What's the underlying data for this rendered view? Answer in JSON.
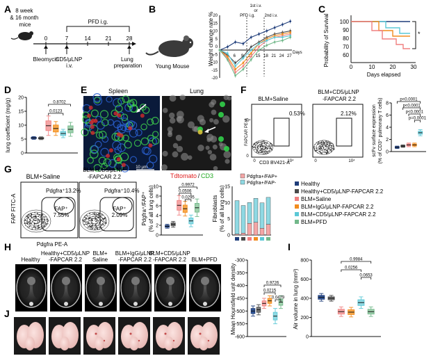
{
  "panels": {
    "a": "A",
    "b": "B",
    "c": "C",
    "d": "D",
    "e": "E",
    "f": "F",
    "g": "G",
    "h": "H",
    "i": "I",
    "j": "J"
  },
  "colors": {
    "healthy": "#1f3d7a",
    "healthy_car": "#4a4a4a",
    "blm_saline": "#f08080",
    "blm_igg": "#f28c1e",
    "blm_car": "#5bc8d6",
    "blm_pfd": "#72b88a"
  },
  "a": {
    "mice": "8 week\n& 16 month\nmice",
    "pfd": "PFD i.g.",
    "ticks": [
      "0",
      "7",
      "14",
      "21",
      "28"
    ],
    "bleomycin": "Bleomycin",
    "lnp": "CD5/μLNP\ni.v.",
    "lung": "Lung\npreparation"
  },
  "b": {
    "mouse": "Young Mouse",
    "ylabel": "Weight change rate %",
    "inj1": "1st i.v.",
    "or": "or",
    "pfd": "PFD i.g.",
    "inj2": "2nd i.v.",
    "xlabel": "Days",
    "yticks": [
      "20",
      "15",
      "10",
      "5",
      "0",
      "-5",
      "-10",
      "-15",
      "-20"
    ],
    "xticks": [
      "3",
      "6",
      "9",
      "12",
      "15",
      "18",
      "21",
      "24",
      "27"
    ]
  },
  "c": {
    "ylabel": "Probability of Survival",
    "xlabel": "Days elapsed",
    "yticks": [
      "100",
      "90",
      "80",
      "70",
      "60"
    ],
    "xticks": [
      "0",
      "10",
      "20",
      "30"
    ],
    "sig": "*"
  },
  "d": {
    "ylabel": "lung coefficient (mg/g)",
    "yticks": [
      "20",
      "15",
      "10",
      "5",
      "0"
    ],
    "p1": "0.8702",
    "p2": "0.0123",
    "chart_data": {
      "type": "box",
      "categories": [
        "Healthy",
        "Healthy+CD5/μLNP-FAPCAR 2.2",
        "BLM+Saline",
        "BLM+IgG/μLNP-FAPCAR 2.2",
        "BLM+CD5/μLNP-FAPCAR 2.2",
        "BLM+PFD"
      ],
      "medians": [
        5.4,
        5.3,
        9.8,
        8.8,
        7.0,
        8.5
      ],
      "ylim": [
        0,
        20
      ]
    }
  },
  "e": {
    "spleen": "Spleen",
    "lung": "Lung",
    "scale": "10 μm",
    "red": "Tdtomato",
    "slash": "/",
    "green": "CD3"
  },
  "f": {
    "label1": "BLM+Saline",
    "label2": "BLM+CD5/μLNP\n-FAPCAR 2.2",
    "pct1": "0.53%",
    "pct2": "2.12%",
    "yaxis": "FAPCAR PE-A",
    "xaxis": "CD3 BV421-A",
    "ylabel": "scFv surface expression\n(% of CD3⁺ pulmonary T cells)",
    "yticks": [
      "8",
      "6",
      "4",
      "2",
      "0"
    ],
    "p": [
      "p<0.0001",
      "p<0.0001",
      "p<0.0001",
      "p=0.0001"
    ],
    "chart_data": {
      "type": "box",
      "medians": [
        0.7,
        0.9,
        1.1,
        1.1,
        3.1
      ],
      "ylim": [
        0,
        8
      ]
    }
  },
  "g": {
    "label1": "BLM+Saline",
    "label2": "BLM+CD5/μLNP\n-FAPCAR 2.2",
    "pdg1": "Pdgfra⁺13.2%",
    "fap1": "FAP⁺\n7.55%",
    "pdg2": "Pdgfra⁺10.4%",
    "fap2": "FAP⁺\n2.09%",
    "yaxis": "FAP FITC-A",
    "xaxis": "Pdgfra PE-A",
    "ylabel1": "Pdgfra⁺/FAP⁺\n(% of all lung cells)",
    "yticks1": [
      "10",
      "8",
      "6",
      "4",
      "2",
      "0"
    ],
    "p": [
      "0.9972",
      "0.0506",
      "0.0295"
    ],
    "legend_top": [
      "Pdgfra+/FAP+",
      "Pdgfra+/FAP-"
    ],
    "ylabel2": "Fibroblasts\n(% of all lung cells)",
    "yticks2": [
      "15",
      "10",
      "5",
      "0"
    ],
    "chart_data": {
      "type": "box",
      "medians": [
        1.8,
        2.2,
        6.1,
        5.4,
        2.9,
        5.6
      ],
      "ylim": [
        0,
        10
      ]
    },
    "stacked": {
      "type": "bar",
      "fap_pos": [
        0.3,
        0.6,
        3.6,
        3.9,
        2.1,
        3.3
      ],
      "fap_neg": [
        10.3,
        8.5,
        6.4,
        7.4,
        7.8,
        8.3
      ]
    }
  },
  "legend": [
    "Healthy",
    "Healthy+CD5/μLNP-FAPCAR 2.2",
    "BLM+Saline",
    "BLM+IgG/μLNP-FAPCAR 2.2",
    "BLM+CD5/μLNP-FAPCAR 2.2",
    "BLM+PFD"
  ],
  "h": {
    "titles": [
      "Healthy",
      "Healthy+CD5/μLNP\n-FAPCAR 2.2",
      "BLM+\nSaline",
      "BLM+IgG/μLNP\n-FAPCAR 2.2",
      "BLM+CD5/μLNP\n-FAPCAR 2.2",
      "BLM+PFD"
    ],
    "ylabel": "Mean Hounsfield unit density",
    "yticks": [
      "-300",
      "-350",
      "-400",
      "-450",
      "-500",
      "-550",
      "-600"
    ],
    "p": [
      "0.9726",
      "0.0215",
      "0.0479"
    ],
    "chart_data": {
      "type": "box",
      "medians": [
        -500,
        -495,
        -470,
        -460,
        -520,
        -465
      ],
      "ylim": [
        -600,
        -300
      ]
    }
  },
  "i": {
    "ylabel": "Air volume in lung (mm³)",
    "yticks": [
      "800",
      "600",
      "400",
      "200",
      "0"
    ],
    "p": [
      "0.9984",
      "0.0256",
      "0.0653"
    ],
    "chart_data": {
      "type": "box",
      "medians": [
        410,
        400,
        260,
        255,
        355,
        260
      ],
      "ylim": [
        0,
        800
      ]
    }
  }
}
